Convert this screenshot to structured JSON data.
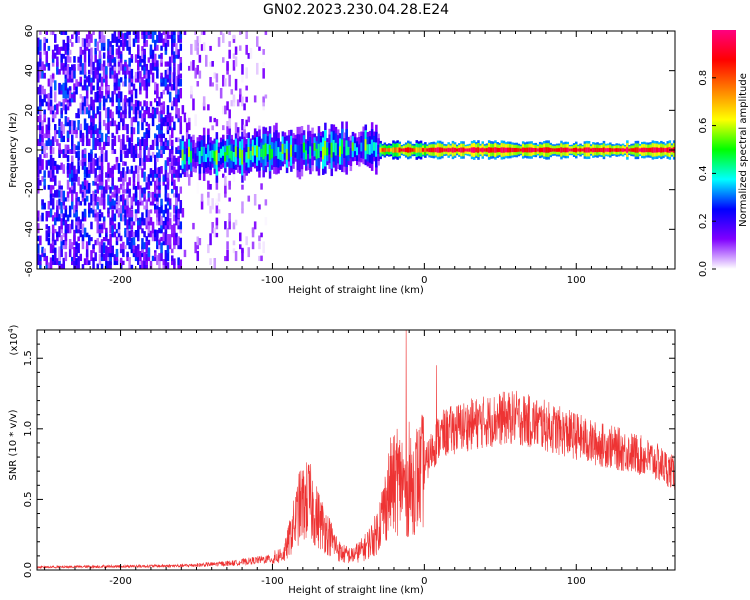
{
  "figure_title": "GN02.2023.230.04.28.E24",
  "chart_data": [
    {
      "type": "heatmap",
      "xlabel": "Height of straight line (km)",
      "ylabel": "Frequency (Hz)",
      "xlim": [
        -255,
        165
      ],
      "ylim": [
        -60,
        60
      ],
      "xticks": [
        -200,
        -100,
        0,
        100
      ],
      "xtick_labels": [
        "-200",
        "-100",
        "0",
        "100"
      ],
      "yticks": [
        -60,
        -40,
        -20,
        0,
        20,
        40,
        60
      ],
      "ytick_labels": [
        "-60",
        "-40",
        "-20",
        "0",
        "20",
        "40",
        "60"
      ],
      "colorbar": {
        "label": "Normalized spectral amplitude",
        "range": [
          0,
          1
        ],
        "ticks": [
          0.0,
          0.2,
          0.4,
          0.6,
          0.8
        ],
        "tick_labels": [
          "0.0",
          "0.2",
          "0.4",
          "0.6",
          "0.8"
        ],
        "colormap": [
          "#ffffff",
          "#8000ff",
          "#0000ff",
          "#00ffff",
          "#00ff00",
          "#ffff00",
          "#ff8000",
          "#ff0000",
          "#ff0080"
        ]
      },
      "regions": [
        {
          "x_range": [
            -255,
            -160
          ],
          "freq_range": [
            -60,
            60
          ],
          "amplitude": [
            0.05,
            0.3
          ],
          "pattern": "scattered noise"
        },
        {
          "x_range": [
            -160,
            -105
          ],
          "freq_range": [
            -60,
            60
          ],
          "amplitude": [
            0.0,
            0.15
          ],
          "pattern": "sparse faint noise"
        },
        {
          "x_range": [
            -160,
            -30
          ],
          "freq_center": 0,
          "freq_halfwidth": 8,
          "amplitude": [
            0.2,
            0.6
          ],
          "pattern": "noisy band"
        },
        {
          "x_range": [
            -30,
            0
          ],
          "freq_center": 0,
          "freq_halfwidth": 3,
          "amplitude": [
            0.6,
            0.95
          ],
          "pattern": "narrow strong line"
        },
        {
          "x_range": [
            0,
            165
          ],
          "freq_center": 0,
          "freq_halfwidth": 3,
          "amplitude": [
            0.85,
            1.0
          ],
          "pattern": "steady strong line"
        }
      ]
    },
    {
      "type": "line",
      "xlabel": "Height of straight line (km)",
      "ylabel": "SNR (10 * v/v)",
      "y_multiplier_label": "(x10",
      "y_multiplier_exp": "4",
      "y_multiplier_close": ")",
      "xlim": [
        -255,
        165
      ],
      "ylim": [
        0,
        1.7
      ],
      "xticks": [
        -200,
        -100,
        0,
        100
      ],
      "xtick_labels": [
        "-200",
        "-100",
        "0",
        "100"
      ],
      "yticks": [
        0.0,
        0.5,
        1.0,
        1.5
      ],
      "ytick_labels": [
        "0.0",
        "0.5",
        "1.0",
        "1.5"
      ],
      "series_color": "#ee3333",
      "envelope": {
        "x": [
          -255,
          -160,
          -140,
          -125,
          -110,
          -100,
          -92,
          -88,
          -82,
          -76,
          -72,
          -66,
          -60,
          -55,
          -48,
          -40,
          -32,
          -26,
          -22,
          -18,
          -15,
          -12,
          -8,
          -4,
          0,
          5,
          10,
          20,
          30,
          40,
          50,
          60,
          70,
          80,
          90,
          100,
          110,
          120,
          130,
          140,
          150,
          160,
          165
        ],
        "y": [
          0.02,
          0.03,
          0.04,
          0.05,
          0.07,
          0.08,
          0.12,
          0.25,
          0.45,
          0.5,
          0.4,
          0.3,
          0.2,
          0.12,
          0.1,
          0.15,
          0.25,
          0.45,
          0.6,
          0.6,
          0.65,
          0.55,
          0.6,
          0.65,
          0.72,
          0.85,
          0.95,
          1.0,
          1.03,
          1.05,
          1.07,
          1.08,
          1.05,
          1.02,
          0.98,
          0.95,
          0.9,
          0.88,
          0.85,
          0.82,
          0.78,
          0.72,
          0.68
        ]
      },
      "spikes": [
        {
          "x": -12,
          "y": 1.7
        },
        {
          "x": -18,
          "y": 1.0
        },
        {
          "x": -10,
          "y": 1.05
        },
        {
          "x": -5,
          "y": 1.0
        },
        {
          "x": 8,
          "y": 1.45
        }
      ]
    }
  ]
}
